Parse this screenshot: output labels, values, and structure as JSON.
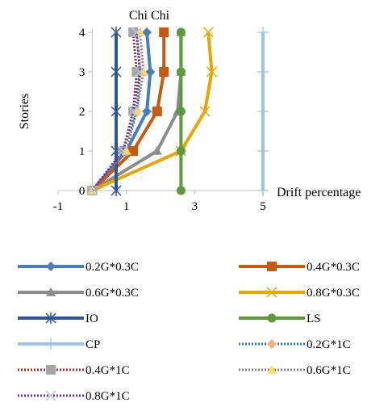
{
  "chart_data": {
    "type": "line",
    "title": "Chi Chi",
    "xlabel": "Drift percentage",
    "ylabel": "Stories",
    "xlim": [
      -1,
      5
    ],
    "ylim": [
      0,
      4
    ],
    "x_ticks": [
      "-1",
      "1",
      "3",
      "5"
    ],
    "y_ticks": [
      "0",
      "1",
      "2",
      "3",
      "4"
    ],
    "grid": false,
    "legend_position": "bottom",
    "series": [
      {
        "name": "0.2G*0.3C",
        "x": [
          0,
          1.0,
          1.6,
          1.7,
          1.6
        ],
        "y": [
          0,
          1,
          2,
          3,
          4
        ],
        "color": "#4A7EBB",
        "marker": "diamond",
        "line": "solid"
      },
      {
        "name": "0.4G*0.3C",
        "x": [
          0,
          1.2,
          1.9,
          2.1,
          2.1
        ],
        "y": [
          0,
          1,
          2,
          3,
          4
        ],
        "color": "#C65A11",
        "marker": "square",
        "line": "solid"
      },
      {
        "name": "0.6G*0.3C",
        "x": [
          0,
          1.9,
          2.5,
          2.6,
          2.6
        ],
        "y": [
          0,
          1,
          2,
          3,
          4
        ],
        "color": "#8C8C8C",
        "marker": "triangle",
        "line": "solid"
      },
      {
        "name": "0.8G*0.3C",
        "x": [
          0,
          2.6,
          3.3,
          3.5,
          3.4
        ],
        "y": [
          0,
          1,
          2,
          3,
          4
        ],
        "color": "#E6A700",
        "marker": "x",
        "line": "solid"
      },
      {
        "name": "IO",
        "x": [
          0.7,
          0.7,
          0.7,
          0.7,
          0.7
        ],
        "y": [
          0,
          1,
          2,
          3,
          4
        ],
        "color": "#2F5597",
        "marker": "star",
        "line": "solid"
      },
      {
        "name": "LS",
        "x": [
          2.6,
          2.6,
          2.6,
          2.6,
          2.6
        ],
        "y": [
          0,
          1,
          2,
          3,
          4
        ],
        "color": "#5E9A3C",
        "marker": "circle",
        "line": "solid"
      },
      {
        "name": "CP",
        "x": [
          5,
          5,
          5,
          5,
          5
        ],
        "y": [
          0,
          1,
          2,
          3,
          4
        ],
        "color": "#9DC3E6",
        "marker": "plus",
        "line": "solid"
      },
      {
        "name": "0.2G*1C",
        "x": [
          0,
          0.9,
          1.3,
          1.4,
          1.3
        ],
        "y": [
          0,
          1,
          2,
          3,
          4
        ],
        "color": "#2E75B6",
        "marker": "diamond",
        "marker_color": "#F4B183",
        "line": "dotted"
      },
      {
        "name": "0.4G*1C",
        "x": [
          0,
          0.9,
          1.2,
          1.3,
          1.2
        ],
        "y": [
          0,
          1,
          2,
          3,
          4
        ],
        "color": "#A52A2A",
        "marker": "square",
        "marker_color": "#A6A6A6",
        "line": "dotted"
      },
      {
        "name": "0.6G*1C",
        "x": [
          0,
          1.0,
          1.3,
          1.5,
          1.4
        ],
        "y": [
          0,
          1,
          2,
          3,
          4
        ],
        "color": "#7F7F7F",
        "marker": "triangle",
        "marker_color": "#FFD966",
        "line": "dotted"
      },
      {
        "name": "0.8G*1C",
        "x": [
          0,
          0.9,
          1.2,
          1.4,
          1.3
        ],
        "y": [
          0,
          1,
          2,
          3,
          4
        ],
        "color": "#7030A0",
        "marker": "x",
        "marker_color": "#B4C7E7",
        "line": "dotted"
      }
    ]
  }
}
